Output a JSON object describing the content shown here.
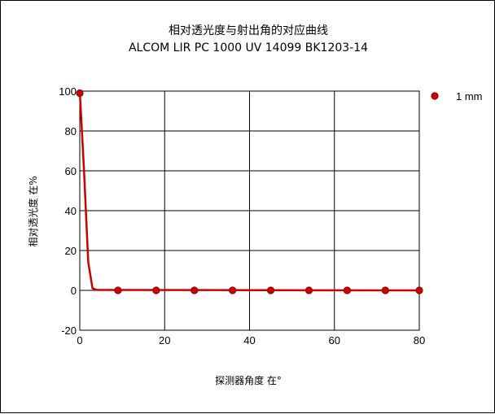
{
  "chart_data": {
    "type": "line",
    "title": "相对透光度与射出角的对应曲线",
    "subtitle": "ALCOM LIR PC 1000 UV 14099  BK1203-14",
    "xlabel": "探测器角度 在°",
    "ylabel": "相对透光度 在%",
    "xlim": [
      0,
      80
    ],
    "ylim": [
      -20,
      100
    ],
    "x_ticks": [
      "0",
      "20",
      "40",
      "60",
      "80"
    ],
    "y_ticks": [
      "-20",
      "0",
      "20",
      "40",
      "60",
      "80",
      "100"
    ],
    "grid": true,
    "legend_position": "right",
    "series": [
      {
        "name": "1 mm",
        "color": "#cc0000",
        "line": [
          {
            "x": 0,
            "y": 100
          },
          {
            "x": 1,
            "y": 60
          },
          {
            "x": 2,
            "y": 14
          },
          {
            "x": 3,
            "y": 1
          },
          {
            "x": 4,
            "y": 0.2
          },
          {
            "x": 80,
            "y": 0
          }
        ],
        "markers": [
          {
            "x": 0,
            "y": 99
          },
          {
            "x": 9,
            "y": 0
          },
          {
            "x": 18,
            "y": 0
          },
          {
            "x": 27,
            "y": 0
          },
          {
            "x": 36,
            "y": 0
          },
          {
            "x": 45,
            "y": 0
          },
          {
            "x": 54,
            "y": 0
          },
          {
            "x": 63,
            "y": 0
          },
          {
            "x": 72,
            "y": 0
          },
          {
            "x": 80,
            "y": 0
          }
        ]
      }
    ]
  }
}
